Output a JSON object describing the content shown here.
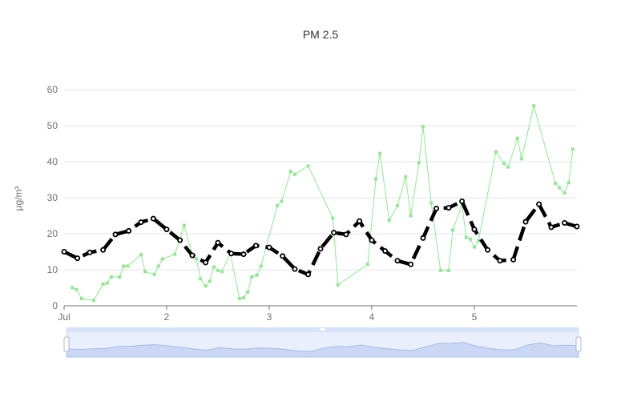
{
  "chart_data": {
    "type": "line",
    "title": "PM 2.5",
    "ylabel": "μg/m³",
    "xlabel": "",
    "ylim": [
      0,
      60
    ],
    "y_ticks": [
      0,
      10,
      20,
      30,
      40,
      50,
      60
    ],
    "xlim": [
      0,
      5
    ],
    "x_ticks": [
      {
        "value": 0,
        "label": "Jul"
      },
      {
        "value": 1,
        "label": "2"
      },
      {
        "value": 2,
        "label": "3"
      },
      {
        "value": 3,
        "label": "4"
      },
      {
        "value": 4,
        "label": "5"
      }
    ],
    "grid": true,
    "legend": "none",
    "series": [
      {
        "style": "thin-line-square-markers",
        "color": "#90e890",
        "points": [
          [
            0.08,
            5
          ],
          [
            0.12,
            4.5
          ],
          [
            0.17,
            2
          ],
          [
            0.29,
            1.5
          ],
          [
            0.38,
            6
          ],
          [
            0.42,
            6.3
          ],
          [
            0.46,
            8
          ],
          [
            0.54,
            8
          ],
          [
            0.58,
            11
          ],
          [
            0.62,
            11
          ],
          [
            0.75,
            14.2
          ],
          [
            0.79,
            9.5
          ],
          [
            0.88,
            8.7
          ],
          [
            0.92,
            11
          ],
          [
            0.96,
            13
          ],
          [
            1.08,
            14.3
          ],
          [
            1.17,
            22.3
          ],
          [
            1.25,
            14
          ],
          [
            1.29,
            13
          ],
          [
            1.33,
            7.5
          ],
          [
            1.38,
            5.5
          ],
          [
            1.42,
            6.8
          ],
          [
            1.46,
            10.8
          ],
          [
            1.5,
            9.8
          ],
          [
            1.54,
            9.5
          ],
          [
            1.62,
            14.5
          ],
          [
            1.71,
            2
          ],
          [
            1.75,
            2.2
          ],
          [
            1.79,
            3.8
          ],
          [
            1.83,
            8
          ],
          [
            1.88,
            8.5
          ],
          [
            1.92,
            11
          ],
          [
            2.08,
            27.8
          ],
          [
            2.12,
            29
          ],
          [
            2.21,
            37.3
          ],
          [
            2.25,
            36.5
          ],
          [
            2.38,
            38.8
          ],
          [
            2.62,
            24.3
          ],
          [
            2.67,
            5.8
          ],
          [
            2.96,
            11.5
          ],
          [
            3.04,
            35.2
          ],
          [
            3.08,
            42.3
          ],
          [
            3.17,
            23.7
          ],
          [
            3.25,
            27.8
          ],
          [
            3.33,
            35.8
          ],
          [
            3.38,
            25
          ],
          [
            3.46,
            39.7
          ],
          [
            3.5,
            49.8
          ],
          [
            3.58,
            28.5
          ],
          [
            3.67,
            9.8
          ],
          [
            3.75,
            9.8
          ],
          [
            3.79,
            21
          ],
          [
            3.88,
            28
          ],
          [
            3.92,
            19
          ],
          [
            3.96,
            18.5
          ],
          [
            4.0,
            16.3
          ],
          [
            4.04,
            18
          ],
          [
            4.21,
            42.7
          ],
          [
            4.29,
            39.5
          ],
          [
            4.33,
            38.5
          ],
          [
            4.42,
            46.5
          ],
          [
            4.46,
            40.8
          ],
          [
            4.58,
            55.5
          ],
          [
            4.79,
            34
          ],
          [
            4.83,
            32.8
          ],
          [
            4.88,
            31.3
          ],
          [
            4.92,
            34.2
          ],
          [
            4.96,
            43.5
          ]
        ]
      },
      {
        "style": "thick-dashed-circle-markers",
        "color": "#000000",
        "points": [
          [
            0.0,
            15
          ],
          [
            0.13,
            13.2
          ],
          [
            0.25,
            14.8
          ],
          [
            0.38,
            15.5
          ],
          [
            0.5,
            19.8
          ],
          [
            0.63,
            20.8
          ],
          [
            0.75,
            23.2
          ],
          [
            0.87,
            24.2
          ],
          [
            1.0,
            21.2
          ],
          [
            1.13,
            18.2
          ],
          [
            1.25,
            14
          ],
          [
            1.38,
            12
          ],
          [
            1.5,
            17.5
          ],
          [
            1.63,
            14.5
          ],
          [
            1.75,
            14.3
          ],
          [
            1.87,
            16.7
          ],
          [
            2.0,
            16.2
          ],
          [
            2.13,
            13.8
          ],
          [
            2.25,
            10.2
          ],
          [
            2.38,
            8.7
          ],
          [
            2.5,
            15.8
          ],
          [
            2.63,
            20.3
          ],
          [
            2.75,
            19.8
          ],
          [
            2.88,
            23.5
          ],
          [
            3.0,
            18.2
          ],
          [
            3.13,
            15.2
          ],
          [
            3.25,
            12.5
          ],
          [
            3.38,
            11.5
          ],
          [
            3.5,
            18.8
          ],
          [
            3.63,
            27
          ],
          [
            3.75,
            27.2
          ],
          [
            3.88,
            29
          ],
          [
            4.0,
            21.2
          ],
          [
            4.13,
            15.5
          ],
          [
            4.25,
            12.5
          ],
          [
            4.38,
            12.8
          ],
          [
            4.5,
            23.3
          ],
          [
            4.63,
            28.2
          ],
          [
            4.75,
            21.8
          ],
          [
            4.88,
            23
          ],
          [
            5.0,
            22
          ]
        ]
      }
    ],
    "zoom_slider": {
      "range_percent": [
        0,
        100
      ],
      "preview_color": "#b6c7ec"
    }
  }
}
